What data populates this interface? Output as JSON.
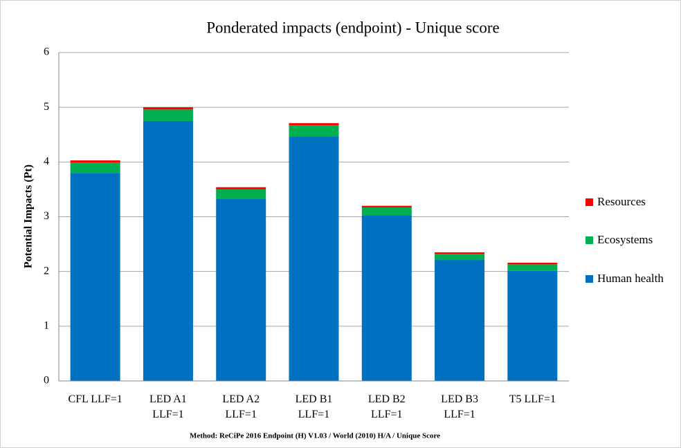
{
  "chart_data": {
    "type": "stacked_bar",
    "title": "Ponderated impacts (endpoint) - Unique score",
    "y_label": "Potential Impacts (Pt)",
    "footnote": "Method: ReCiPe 2016 Endpoint (H) V1.03 / World (2010) H/A / Unique Score",
    "categories": [
      "CFL LLF=1",
      "LED A1 LLF=1",
      "LED A2 LLF=1",
      "LED B1 LLF=1",
      "LED B2 LLF=1",
      "LED B3 LLF=1",
      "T5 LLF=1"
    ],
    "series": [
      {
        "name": "Human health",
        "color": "#0070c0",
        "values": [
          3.8,
          4.75,
          3.33,
          4.47,
          3.03,
          2.21,
          2.01
        ]
      },
      {
        "name": "Ecosystems",
        "color": "#00b050",
        "values": [
          0.19,
          0.21,
          0.17,
          0.2,
          0.14,
          0.11,
          0.12
        ]
      },
      {
        "name": "Resources",
        "color": "#ff0000",
        "values": [
          0.04,
          0.04,
          0.04,
          0.04,
          0.03,
          0.03,
          0.03
        ]
      }
    ],
    "ylim": [
      0,
      6
    ],
    "yticks": [
      0,
      1,
      2,
      3,
      4,
      5,
      6
    ],
    "grid": true,
    "legend": "right"
  }
}
